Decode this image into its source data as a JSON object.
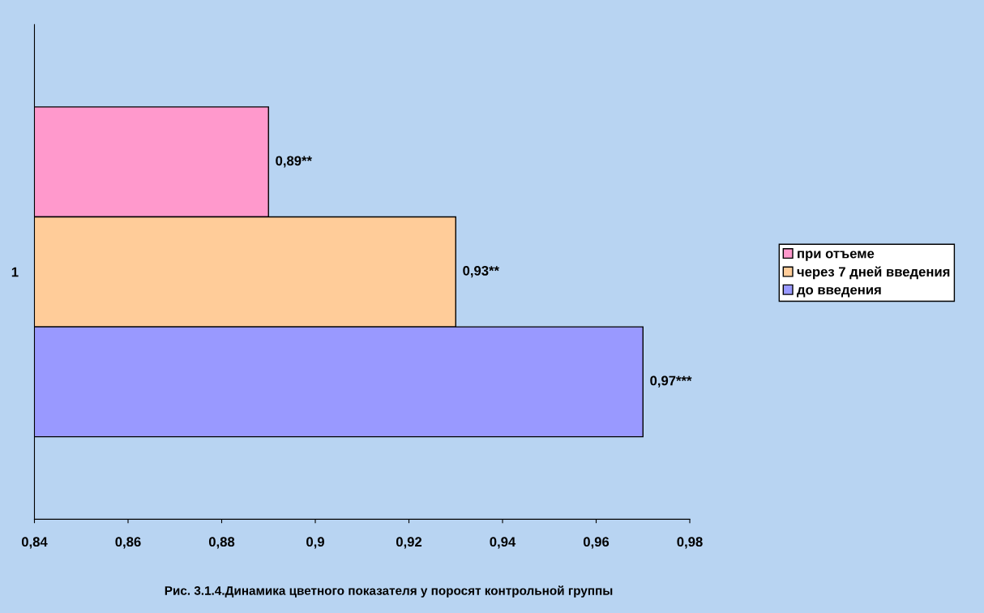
{
  "chart_data": {
    "type": "bar",
    "orientation": "horizontal",
    "categories": [
      "1"
    ],
    "series": [
      {
        "name": "при отъеме",
        "color": "#ff99cc",
        "values": [
          0.89
        ],
        "value_labels": [
          "0,89**"
        ]
      },
      {
        "name": "через 7 дней введения",
        "color": "#ffcc99",
        "values": [
          0.93
        ],
        "value_labels": [
          "0,93**"
        ]
      },
      {
        "name": "до введения",
        "color": "#9999ff",
        "values": [
          0.97
        ],
        "value_labels": [
          "0,97***"
        ]
      }
    ],
    "xlim": [
      0.84,
      0.98
    ],
    "xticks": [
      {
        "value": 0.84,
        "label": "0,84"
      },
      {
        "value": 0.86,
        "label": "0,86"
      },
      {
        "value": 0.88,
        "label": "0,88"
      },
      {
        "value": 0.9,
        "label": "0,9"
      },
      {
        "value": 0.92,
        "label": "0,92"
      },
      {
        "value": 0.94,
        "label": "0,94"
      },
      {
        "value": 0.96,
        "label": "0,96"
      },
      {
        "value": 0.98,
        "label": "0,98"
      }
    ],
    "grid": false,
    "legend": "right",
    "annotations": [
      "Рис. 3.1.4.Динамика цветного показателя у поросят контрольной группы"
    ]
  }
}
